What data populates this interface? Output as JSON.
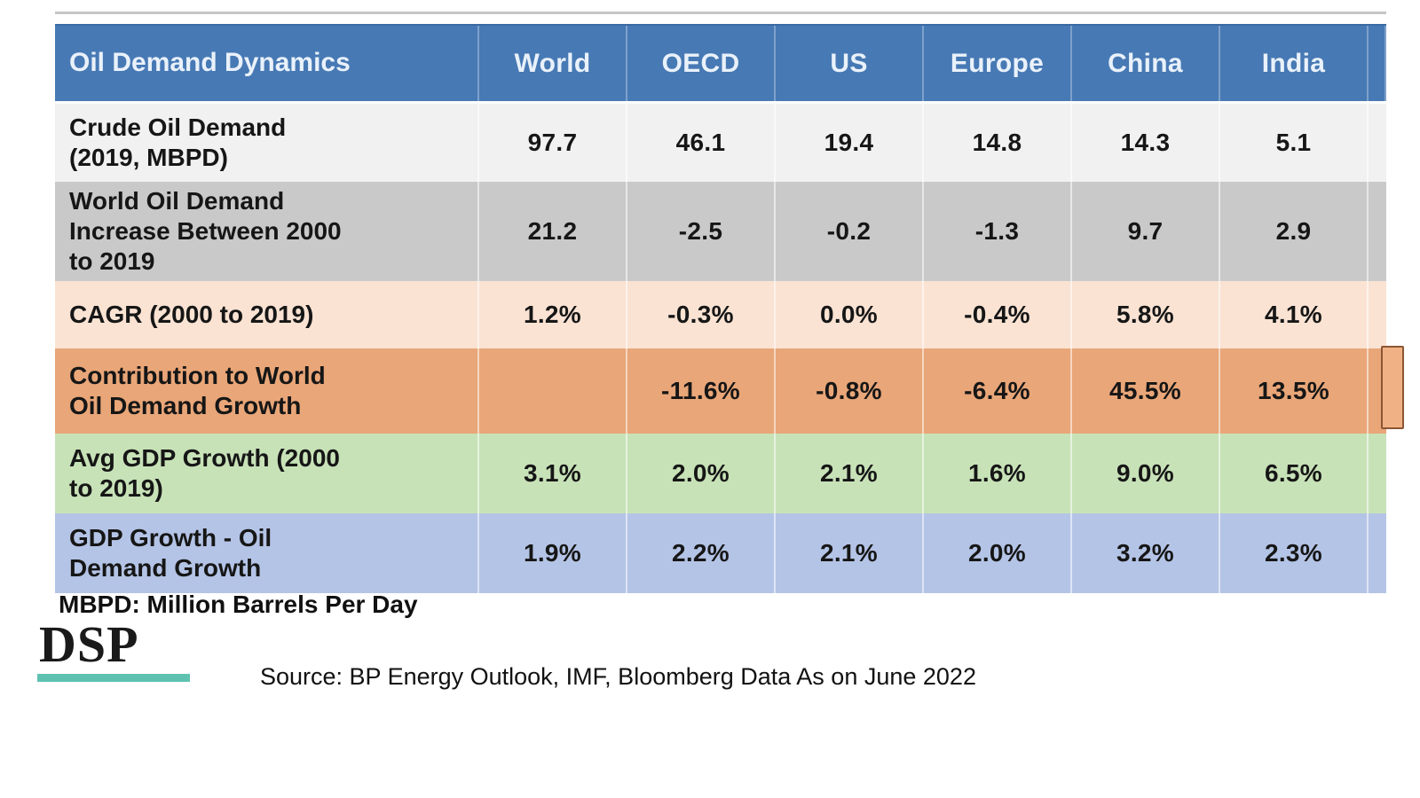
{
  "table": {
    "header": [
      "Oil Demand Dynamics",
      "World",
      "OECD",
      "US",
      "Europe",
      "China",
      "India"
    ],
    "rows": [
      {
        "label": "Crude Oil Demand\n(2019, MBPD)",
        "cells": [
          "97.7",
          "46.1",
          "19.4",
          "14.8",
          "14.3",
          "5.1"
        ]
      },
      {
        "label": "World Oil Demand\nIncrease Between 2000\nto 2019",
        "cells": [
          "21.2",
          "-2.5",
          "-0.2",
          "-1.3",
          "9.7",
          "2.9"
        ]
      },
      {
        "label": "CAGR (2000 to 2019)",
        "cells": [
          "1.2%",
          "-0.3%",
          "0.0%",
          "-0.4%",
          "5.8%",
          "4.1%"
        ]
      },
      {
        "label": "Contribution to World\nOil Demand Growth",
        "cells": [
          "",
          "-11.6%",
          "-0.8%",
          "-6.4%",
          "45.5%",
          "13.5%"
        ]
      },
      {
        "label": "Avg GDP Growth (2000\nto 2019)",
        "cells": [
          "3.1%",
          "2.0%",
          "2.1%",
          "1.6%",
          "9.0%",
          "6.5%"
        ]
      },
      {
        "label": "GDP Growth - Oil\nDemand Growth",
        "cells": [
          "1.9%",
          "2.2%",
          "2.1%",
          "2.0%",
          "3.2%",
          "2.3%"
        ]
      }
    ]
  },
  "footnote": "MBPD: Million Barrels Per Day",
  "logo": {
    "text": "DSP"
  },
  "source": "Source: BP Energy Outlook, IMF, Bloomberg Data As on June 2022",
  "colors": {
    "canvas_bg": "#ffffff",
    "header_bg": "#4779b4",
    "header_text": "#e9f1fa",
    "row_crude_bg": "#f1f1f1",
    "row_increase_bg": "#c9c9c9",
    "row_cagr_bg": "#fae3d3",
    "row_contribution_bg": "#e9a678",
    "row_gdp_bg": "#c8e2b8",
    "row_gdpoil_bg": "#b4c4e6",
    "body_text": "#161616",
    "footnote_text": "#111111",
    "logo_text": "#1a1a1a",
    "logo_underline": "#5fc2b1",
    "highlight_tab_fill": "#f0b285",
    "highlight_tab_border": "#8b5633",
    "top_rule": "#c6c6c6"
  },
  "chart_data": {
    "type": "table",
    "title": "Oil Demand Dynamics",
    "columns": [
      "World",
      "OECD",
      "US",
      "Europe",
      "China",
      "India"
    ],
    "rows": [
      {
        "label": "Crude Oil Demand (2019, MBPD)",
        "values": [
          97.7,
          46.1,
          19.4,
          14.8,
          14.3,
          5.1
        ]
      },
      {
        "label": "World Oil Demand Increase Between 2000 to 2019",
        "values": [
          21.2,
          -2.5,
          -0.2,
          -1.3,
          9.7,
          2.9
        ]
      },
      {
        "label": "CAGR (2000 to 2019)",
        "values": [
          "1.2%",
          "-0.3%",
          "0.0%",
          "-0.4%",
          "5.8%",
          "4.1%"
        ]
      },
      {
        "label": "Contribution to World Oil Demand Growth",
        "values": [
          null,
          "-11.6%",
          "-0.8%",
          "-6.4%",
          "45.5%",
          "13.5%"
        ]
      },
      {
        "label": "Avg GDP Growth (2000 to 2019)",
        "values": [
          "3.1%",
          "2.0%",
          "2.1%",
          "1.6%",
          "9.0%",
          "6.5%"
        ]
      },
      {
        "label": "GDP Growth - Oil Demand Growth",
        "values": [
          "1.9%",
          "2.2%",
          "2.1%",
          "2.0%",
          "3.2%",
          "2.3%"
        ]
      }
    ],
    "footnote": "MBPD: Million Barrels Per Day",
    "source": "Source: BP Energy Outlook, IMF, Bloomberg Data As on June 2022",
    "layout_hints": {
      "highlighted_row": "Contribution to World Oil Demand Growth"
    }
  }
}
